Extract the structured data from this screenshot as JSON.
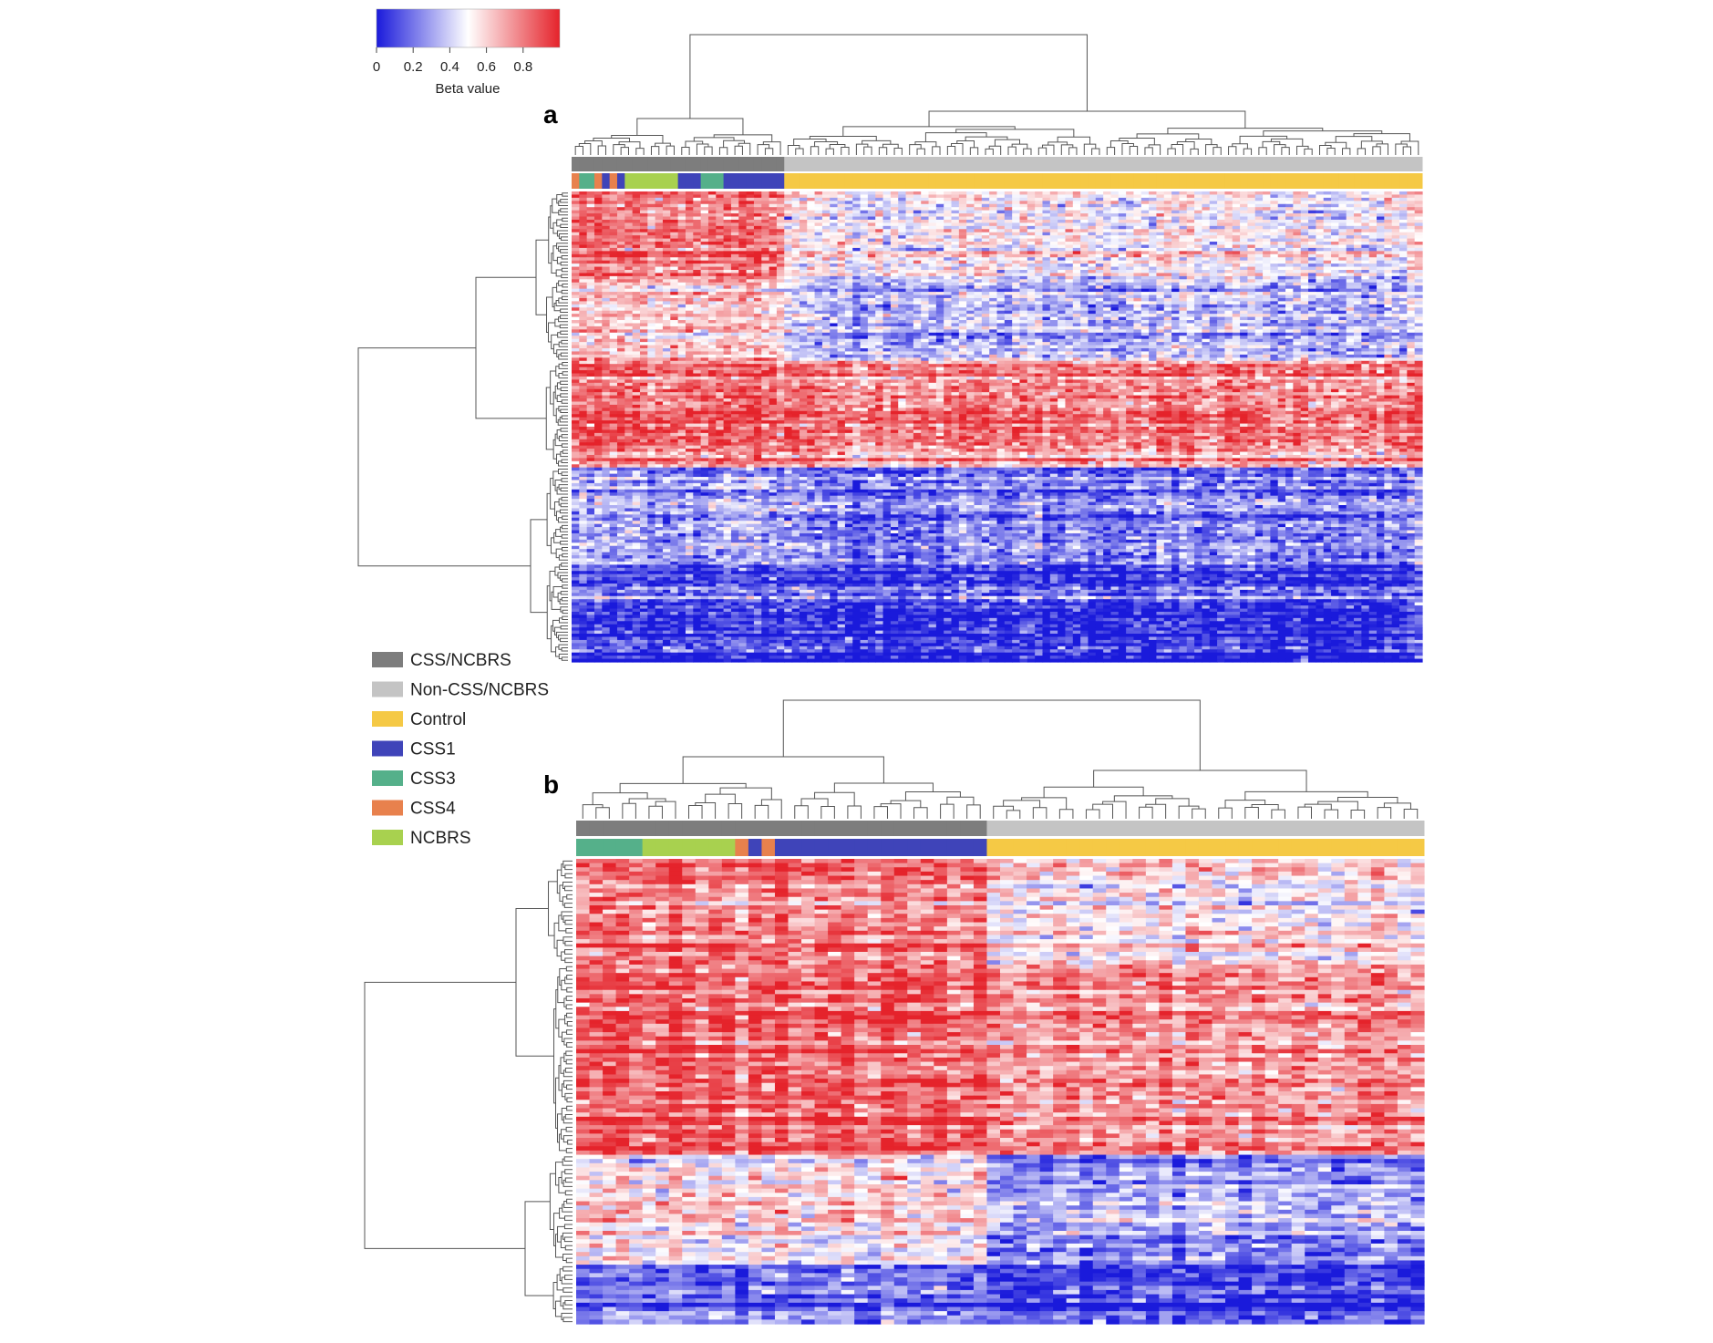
{
  "chart_data": [
    {
      "type": "heatmap",
      "panel": "a",
      "colorbar": {
        "label": "Beta value",
        "ticks": [
          "0",
          "0.2",
          "0.4",
          "0.6",
          "0.8"
        ],
        "tick_values": [
          0,
          0.2,
          0.4,
          0.6,
          0.8
        ],
        "range": [
          0,
          1
        ],
        "colors": {
          "low": "#1a1adb",
          "mid": "#ffffff",
          "high": "#e5232b"
        }
      },
      "column_groups": [
        {
          "group": "CSS/NCBRS",
          "count": 28,
          "subtypes": [
            "CSS4",
            "CSS3",
            "CSS3",
            "CSS4",
            "CSS1",
            "CSS4",
            "CSS1",
            "NCBRS",
            "NCBRS",
            "NCBRS",
            "NCBRS",
            "NCBRS",
            "NCBRS",
            "NCBRS",
            "CSS1",
            "CSS1",
            "CSS1",
            "CSS3",
            "CSS3",
            "CSS3",
            "CSS1",
            "CSS1",
            "CSS1",
            "CSS1",
            "CSS1",
            "CSS1",
            "CSS1",
            "CSS1"
          ]
        },
        {
          "group": "Non-CSS/NCBRS",
          "count": 84,
          "subtype": "Control"
        }
      ],
      "row_blocks": [
        {
          "rows": 28,
          "css_mean": 0.78,
          "control_mean": 0.48
        },
        {
          "rows": 26,
          "css_mean": 0.62,
          "control_mean": 0.35
        },
        {
          "rows": 34,
          "css_mean": 0.86,
          "control_mean": 0.8
        },
        {
          "rows": 30,
          "css_mean": 0.3,
          "control_mean": 0.22
        },
        {
          "rows": 32,
          "css_mean": 0.12,
          "control_mean": 0.08
        }
      ]
    },
    {
      "type": "heatmap",
      "panel": "b",
      "column_groups": [
        {
          "group": "CSS/NCBRS",
          "count": 31,
          "subtypes": [
            "CSS3",
            "CSS3",
            "CSS3",
            "CSS3",
            "CSS3",
            "NCBRS",
            "NCBRS",
            "NCBRS",
            "NCBRS",
            "NCBRS",
            "NCBRS",
            "NCBRS",
            "CSS4",
            "CSS1",
            "CSS4",
            "CSS1",
            "CSS1",
            "CSS1",
            "CSS1",
            "CSS1",
            "CSS1",
            "CSS1",
            "CSS1",
            "CSS1",
            "CSS1",
            "CSS1",
            "CSS1",
            "CSS1",
            "CSS1",
            "CSS1",
            "CSS1"
          ]
        },
        {
          "group": "Non-CSS/NCBRS",
          "count": 33,
          "subtype": "Control"
        }
      ],
      "row_blocks": [
        {
          "rows": 25,
          "css_mean": 0.78,
          "control_mean": 0.55
        },
        {
          "rows": 45,
          "css_mean": 0.87,
          "control_mean": 0.77
        },
        {
          "rows": 26,
          "css_mean": 0.55,
          "control_mean": 0.3
        },
        {
          "rows": 14,
          "css_mean": 0.2,
          "control_mean": 0.1
        }
      ]
    }
  ],
  "legend": {
    "items": [
      {
        "label": "CSS/NCBRS",
        "color": "#7d7d7d"
      },
      {
        "label": "Non-CSS/NCBRS",
        "color": "#c4c4c4"
      },
      {
        "label": "Control",
        "color": "#f5c945"
      },
      {
        "label": "CSS1",
        "color": "#3f44b9"
      },
      {
        "label": "CSS3",
        "color": "#55b08a"
      },
      {
        "label": "CSS4",
        "color": "#e8814d"
      },
      {
        "label": "NCBRS",
        "color": "#a8d14f"
      }
    ]
  }
}
